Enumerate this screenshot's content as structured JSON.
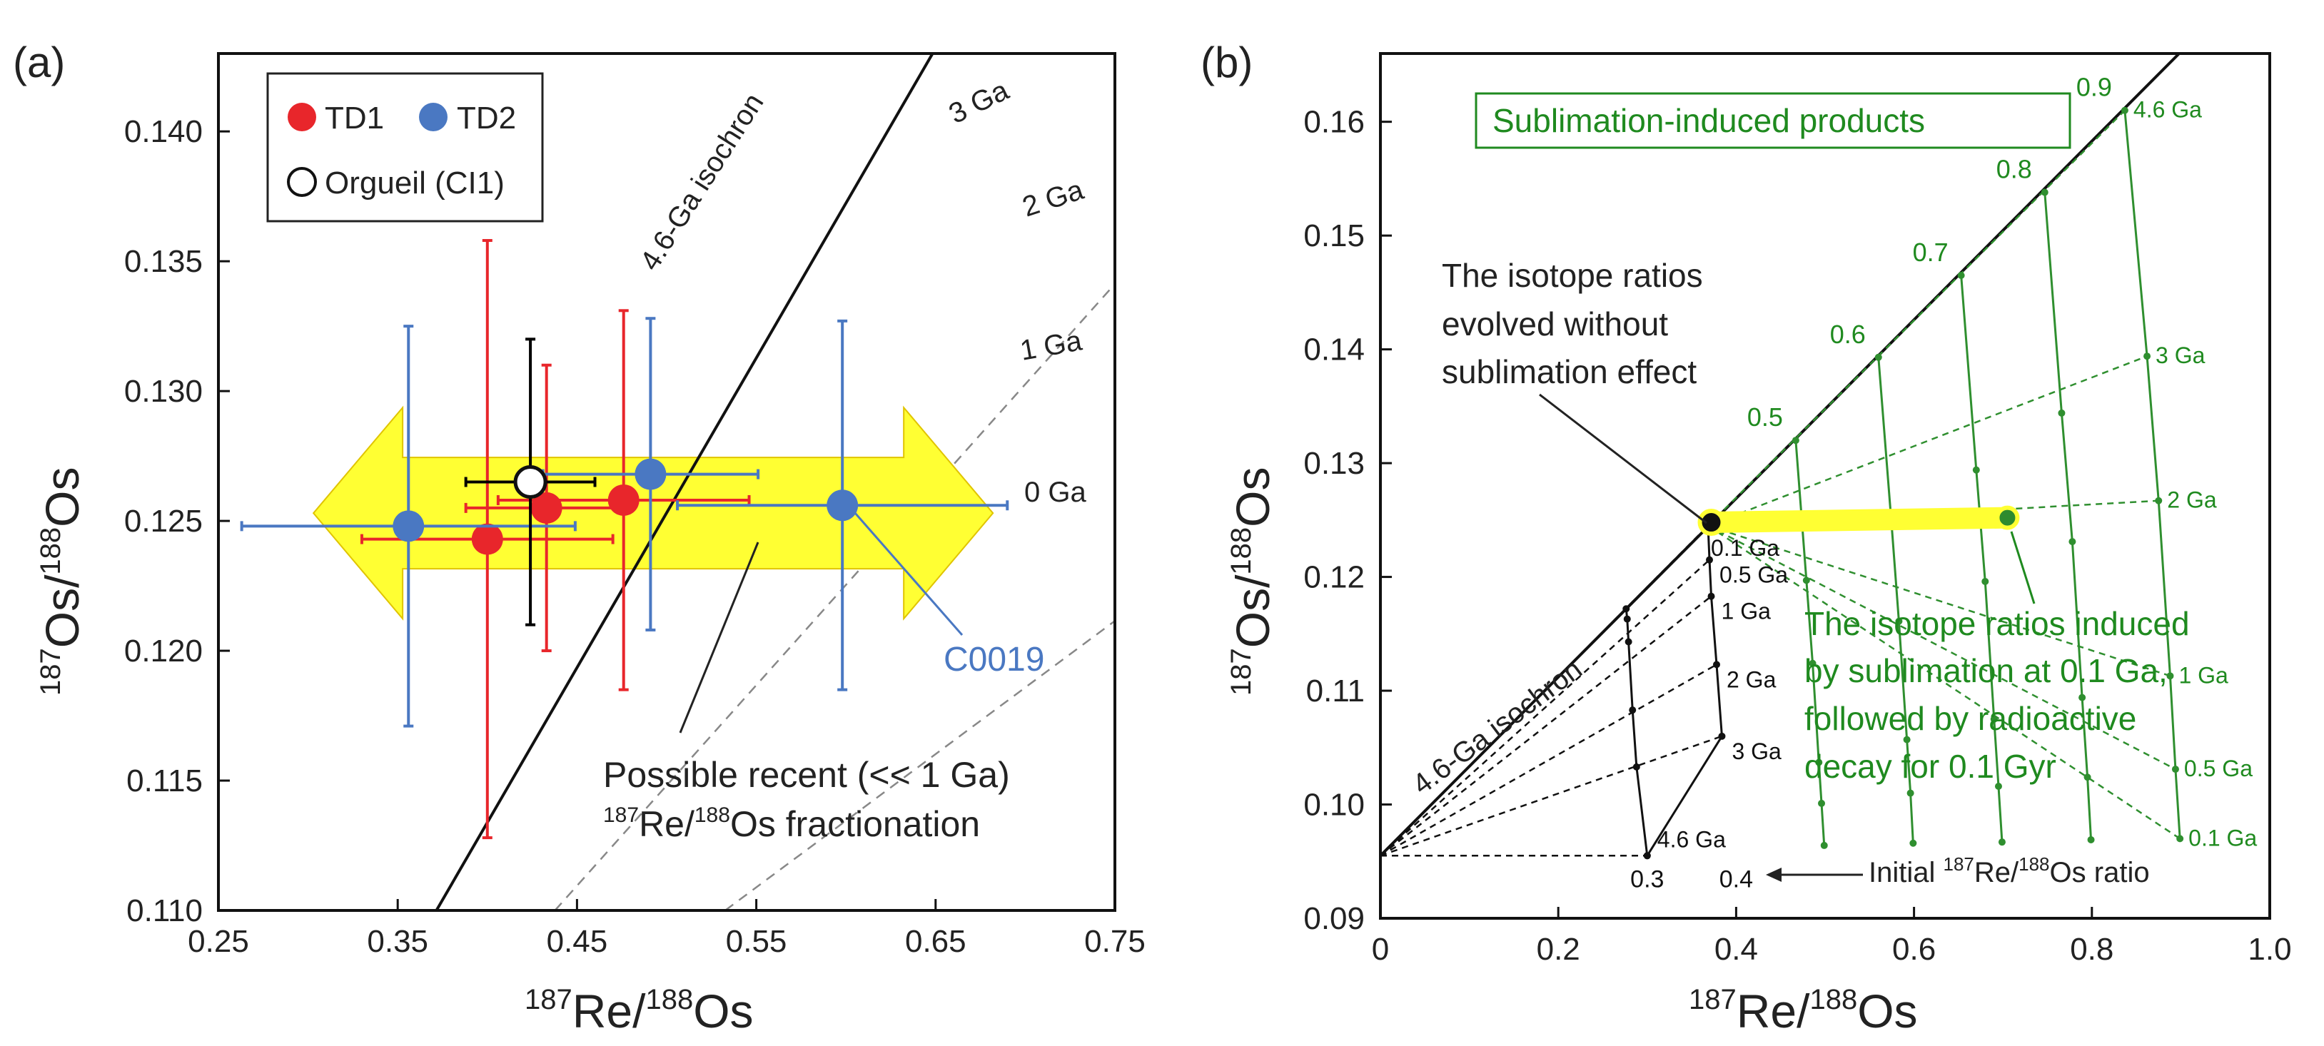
{
  "chart_data": [
    {
      "panel_label": "(a)",
      "type": "scatter",
      "xlabel": {
        "sup1": "187",
        "base1": "Re/",
        "sup2": "188",
        "base2": "Os"
      },
      "ylabel": {
        "sup1": "187",
        "base1": "Os/",
        "sup2": "188",
        "base2": "Os"
      },
      "xlim": [
        0.25,
        0.75
      ],
      "ylim": [
        0.11,
        0.143
      ],
      "xticks": [
        0.25,
        0.35,
        0.45,
        0.55,
        0.65,
        0.75
      ],
      "xtick_labels": [
        "0.25",
        "0.35",
        "0.45",
        "0.55",
        "0.65",
        "0.75"
      ],
      "yticks": [
        0.11,
        0.115,
        0.12,
        0.125,
        0.13,
        0.135,
        0.14
      ],
      "ytick_labels": [
        "0.110",
        "0.115",
        "0.120",
        "0.125",
        "0.130",
        "0.135",
        "0.140"
      ],
      "legend": {
        "placement": "top-left",
        "entries": [
          {
            "label": "TD1",
            "color": "#e8262b",
            "marker": "filled-circle"
          },
          {
            "label": "TD2",
            "color": "#4a78c2",
            "marker": "filled-circle"
          },
          {
            "label": "Orgueil (CI1)",
            "color": "#000000",
            "marker": "open-circle"
          }
        ]
      },
      "reference_intercept": 0.0955,
      "isochron": {
        "label": "4.6-Ga isochron",
        "slope": 0.0795
      },
      "age_lines": [
        {
          "label": "3 Ga",
          "slope": 0.0515
        },
        {
          "label": "2 Ga",
          "slope": 0.0342
        },
        {
          "label": "1 Ga",
          "slope": 0.017
        },
        {
          "label": "0 Ga",
          "slope": 0.0
        }
      ],
      "series": [
        {
          "name": "TD1",
          "color": "#e8262b",
          "points": [
            {
              "x": 0.4,
              "y": 0.1243,
              "xerr": 0.07,
              "yerr": [
                0.0115,
                0.0115
              ]
            },
            {
              "x": 0.433,
              "y": 0.1255,
              "xerr": 0.045,
              "yerr": [
                0.0055,
                0.0055
              ]
            },
            {
              "x": 0.476,
              "y": 0.1258,
              "xerr": 0.07,
              "yerr": [
                0.0073,
                0.0073
              ]
            }
          ]
        },
        {
          "name": "TD2",
          "color": "#4a78c2",
          "points": [
            {
              "x": 0.356,
              "y": 0.1248,
              "xerr": 0.093,
              "yerr": [
                0.0077,
                0.0077
              ]
            },
            {
              "x": 0.491,
              "y": 0.1268,
              "xerr": 0.06,
              "yerr": [
                0.006,
                0.006
              ]
            },
            {
              "x": 0.598,
              "y": 0.1256,
              "xerr": 0.092,
              "yerr": [
                0.0071,
                0.0071
              ]
            }
          ]
        },
        {
          "name": "Orgueil (CI1)",
          "color": "#000000",
          "points": [
            {
              "x": 0.424,
              "y": 0.1265,
              "xerr": 0.036,
              "yerr": [
                0.0055,
                0.0055
              ]
            }
          ]
        }
      ],
      "highlight_arrow": {
        "x_from": 0.303,
        "x_to": 0.682,
        "y_center": 0.1253,
        "color": "#ffff33"
      },
      "annotations": [
        {
          "text": "C0019",
          "color": "#4a78c2"
        },
        {
          "text_line1": "Possible recent (<< 1 Ga)",
          "text_line2_sup1": "187",
          "text_line2_base1": "Re/",
          "text_line2_sup2": "188",
          "text_line2_base2": "Os fractionation"
        }
      ]
    },
    {
      "panel_label": "(b)",
      "type": "line",
      "xlabel": {
        "sup1": "187",
        "base1": "Re/",
        "sup2": "188",
        "base2": "Os"
      },
      "ylabel": {
        "sup1": "187",
        "base1": "Os/",
        "sup2": "188",
        "base2": "Os"
      },
      "xlim": [
        0,
        1.0
      ],
      "ylim": [
        0.09,
        0.166
      ],
      "xticks": [
        0,
        0.2,
        0.4,
        0.6,
        0.8,
        1.0
      ],
      "xtick_labels": [
        "0",
        "0.2",
        "0.4",
        "0.6",
        "0.8",
        "1.0"
      ],
      "yticks": [
        0.09,
        0.1,
        0.11,
        0.12,
        0.13,
        0.14,
        0.15,
        0.16
      ],
      "ytick_labels": [
        "0.09",
        "0.10",
        "0.11",
        "0.12",
        "0.13",
        "0.14",
        "0.15",
        "0.16"
      ],
      "initial_os": 0.0955,
      "isochron": {
        "label": "4.6-Ga isochron",
        "slope": 0.0785
      },
      "times_ga": [
        4.6,
        3,
        2,
        1,
        0.5,
        0.1
      ],
      "time_labels": [
        "4.6 Ga",
        "3 Ga",
        "2 Ga",
        "1 Ga",
        "0.5 Ga",
        "0.1 Ga"
      ],
      "black_grid": {
        "initial_ratios": [
          0.3,
          0.4
        ],
        "initial_ratio_labels": [
          "0.3",
          "0.4"
        ],
        "points_x": [
          [
            0.3,
            0.3
          ],
          [
            0.288,
            0.384
          ],
          [
            0.2835,
            0.378
          ],
          [
            0.279,
            0.372
          ],
          [
            0.2775,
            0.37
          ],
          [
            0.2763,
            0.3684
          ]
        ],
        "points_y": [
          [
            0.0955,
            0.0955
          ],
          [
            0.1033,
            0.106
          ],
          [
            0.1083,
            0.1123
          ],
          [
            0.1143,
            0.1183
          ],
          [
            0.1163,
            0.1215
          ],
          [
            0.1172,
            0.1245
          ]
        ]
      },
      "green_grid": {
        "initial_ratios": [
          0.5,
          0.6,
          0.7,
          0.8,
          0.9
        ],
        "initial_ratio_labels": [
          "0.5",
          "0.6",
          "0.7",
          "0.8",
          "0.9"
        ],
        "fractionated_x": 0.7,
        "points_x": [
          [
            0.467,
            0.56,
            0.653,
            0.747,
            0.837
          ],
          [
            0.479,
            0.575,
            0.67,
            0.766,
            0.862
          ],
          [
            0.486,
            0.583,
            0.68,
            0.778,
            0.875
          ],
          [
            0.493,
            0.592,
            0.69,
            0.789,
            0.888
          ],
          [
            0.496,
            0.596,
            0.695,
            0.795,
            0.894
          ],
          [
            0.499,
            0.599,
            0.699,
            0.799,
            0.899
          ]
        ],
        "points_y": [
          [
            0.132,
            0.1393,
            0.1465,
            0.1538,
            0.161
          ],
          [
            0.1197,
            0.1244,
            0.1294,
            0.1344,
            0.1394
          ],
          [
            0.1124,
            0.1161,
            0.1196,
            0.1231,
            0.1267
          ],
          [
            0.1037,
            0.1057,
            0.1075,
            0.1094,
            0.1113
          ],
          [
            0.1001,
            0.101,
            0.1016,
            0.1024,
            0.1031
          ],
          [
            0.0964,
            0.0966,
            0.0967,
            0.0969,
            0.097
          ]
        ]
      },
      "sample_point": {
        "x": 0.372,
        "y": 0.1248,
        "color": "#000000"
      },
      "sublimated_point": {
        "x": 0.705,
        "y": 0.1252,
        "color": "#2e8b2e"
      },
      "highlight_band": {
        "x_from": 0.372,
        "x_to": 0.705,
        "y_from": 0.1248,
        "y_to": 0.1252,
        "color": "#ffff33"
      },
      "legend_box": {
        "text": "Sublimation-induced products",
        "color": "#1f8a1f"
      },
      "annotations": [
        {
          "lines": [
            "The isotope ratios",
            "evolved without",
            "sublimation effect"
          ],
          "color": "#000000"
        },
        {
          "lines": [
            "The isotope ratios induced",
            "by sublimation at 0.1 Ga,",
            "followed by radioactive",
            "decay for 0.1 Gyr"
          ],
          "color": "#1f8a1f"
        },
        {
          "text_prefix": "Initial ",
          "sup1": "187",
          "base1": "Re/",
          "sup2": "188",
          "base2": "Os ratio"
        }
      ]
    }
  ]
}
